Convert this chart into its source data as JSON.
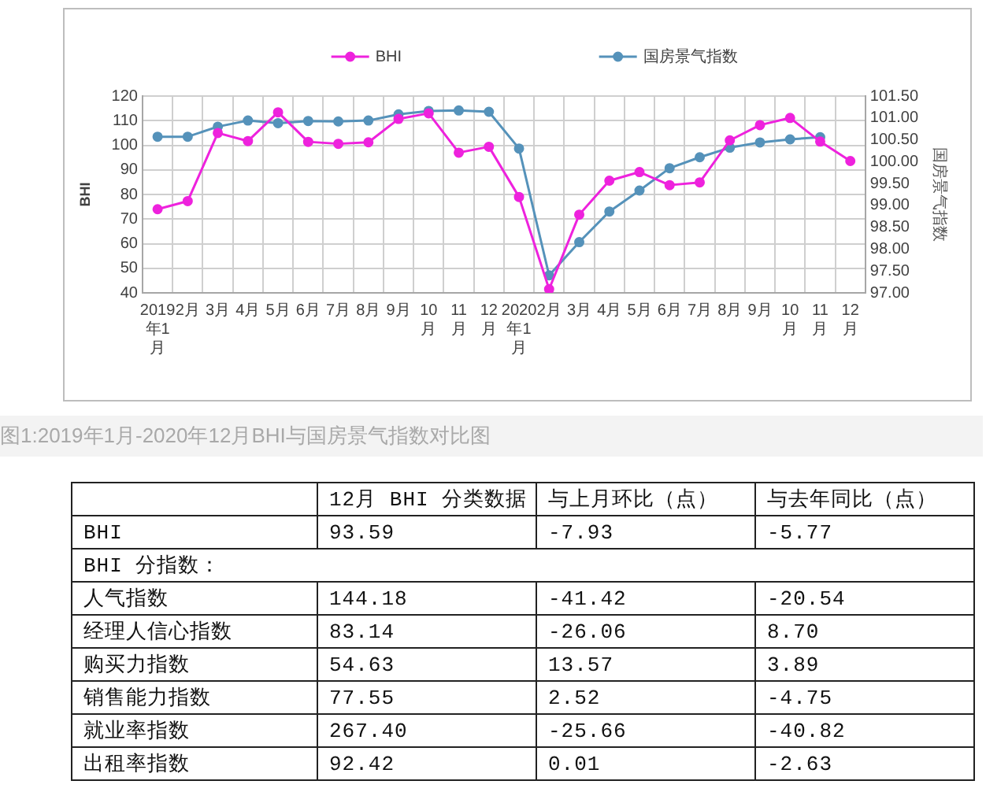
{
  "chart_data": [
    {
      "type": "line",
      "categories": [
        "2019年1月",
        "2月",
        "3月",
        "4月",
        "5月",
        "6月",
        "7月",
        "8月",
        "9月",
        "10月",
        "11月",
        "12月",
        "2020年1月",
        "2月",
        "3月",
        "4月",
        "5月",
        "6月",
        "7月",
        "8月",
        "9月",
        "10月",
        "11月",
        "12月"
      ],
      "series": [
        {
          "name": "BHI",
          "color": "#ee22dd",
          "values": [
            74,
            77.3,
            105,
            101.7,
            113.4,
            101.4,
            100.6,
            101.2,
            110.7,
            113,
            97,
            99.4,
            79,
            41.5,
            71.8,
            85.6,
            89.1,
            83.8,
            84.9,
            102,
            108.2,
            111.1,
            101.5,
            93.6
          ]
        },
        {
          "name": "国房景气指数",
          "color": "#5592ba",
          "axis": "y2",
          "values": [
            100.57,
            100.57,
            100.8,
            100.94,
            100.88,
            100.93,
            100.92,
            100.94,
            101.08,
            101.16,
            101.17,
            101.14,
            100.3,
            97.4,
            98.16,
            98.86,
            99.34,
            99.85,
            100.1,
            100.32,
            100.44,
            100.51,
            100.56,
            null
          ]
        }
      ],
      "ylabel": "BHI",
      "y2label": "国房景气指数",
      "ylim": [
        40,
        120
      ],
      "yticks": [
        40,
        50,
        60,
        70,
        80,
        90,
        100,
        110,
        120
      ],
      "y2lim": [
        97,
        101.5
      ],
      "y2ticks": [
        {
          "value": 97,
          "label": "97.00"
        },
        {
          "value": 97.5,
          "label": "97.50"
        },
        {
          "value": 98,
          "label": "98.00"
        },
        {
          "value": 98.5,
          "label": "98.50"
        },
        {
          "value": 99,
          "label": "99.00"
        },
        {
          "value": 99.5,
          "label": "99.50"
        },
        {
          "value": 100,
          "label": "100.00"
        },
        {
          "value": 100.5,
          "label": "100.50"
        },
        {
          "value": 101,
          "label": "101.00"
        },
        {
          "value": 101.5,
          "label": "101.50"
        }
      ],
      "grid": true,
      "legend": "top",
      "marker": "circle",
      "line_style": "solid",
      "annotations": [
        "图1:2019年1月-2020年12月BHI与国房景气指数对比图"
      ]
    },
    {
      "type": "other",
      "categories": [
        "BHI"
      ],
      "series": [
        {
          "name": "12月 BHI 分类数据",
          "values": [
            93.59
          ],
          "value_labels": [
            "93.59"
          ]
        },
        {
          "name": "与上月环比（点）",
          "values": [
            -7.93
          ],
          "value_labels": [
            "-7.93"
          ]
        },
        {
          "name": "与去年同比（点）",
          "values": [
            -5.77
          ],
          "value_labels": [
            "-5.77"
          ]
        }
      ]
    },
    {
      "type": "other",
      "title": "BHI 分指数：",
      "categories": [
        "人气指数",
        "经理人信心指数",
        "购买力指数",
        "销售能力指数",
        "就业率指数",
        "出租率指数"
      ],
      "series": [
        {
          "values": [
            144.18,
            83.14,
            54.63,
            77.55,
            267.4,
            92.42
          ],
          "value_labels": [
            "144.18",
            "83.14",
            "54.63",
            "77.55",
            "267.40",
            "92.42"
          ]
        },
        {
          "values": [
            -41.42,
            -26.06,
            13.57,
            2.52,
            -25.66,
            0.01
          ],
          "value_labels": [
            "-41.42",
            "-26.06",
            "13.57",
            "2.52",
            "-25.66",
            "0.01"
          ]
        },
        {
          "values": [
            -20.54,
            8.7,
            3.89,
            -4.75,
            -40.82,
            -2.63
          ],
          "value_labels": [
            "-20.54",
            "8.70",
            "3.89",
            "-4.75",
            "-40.82",
            "-2.63"
          ]
        }
      ]
    }
  ]
}
